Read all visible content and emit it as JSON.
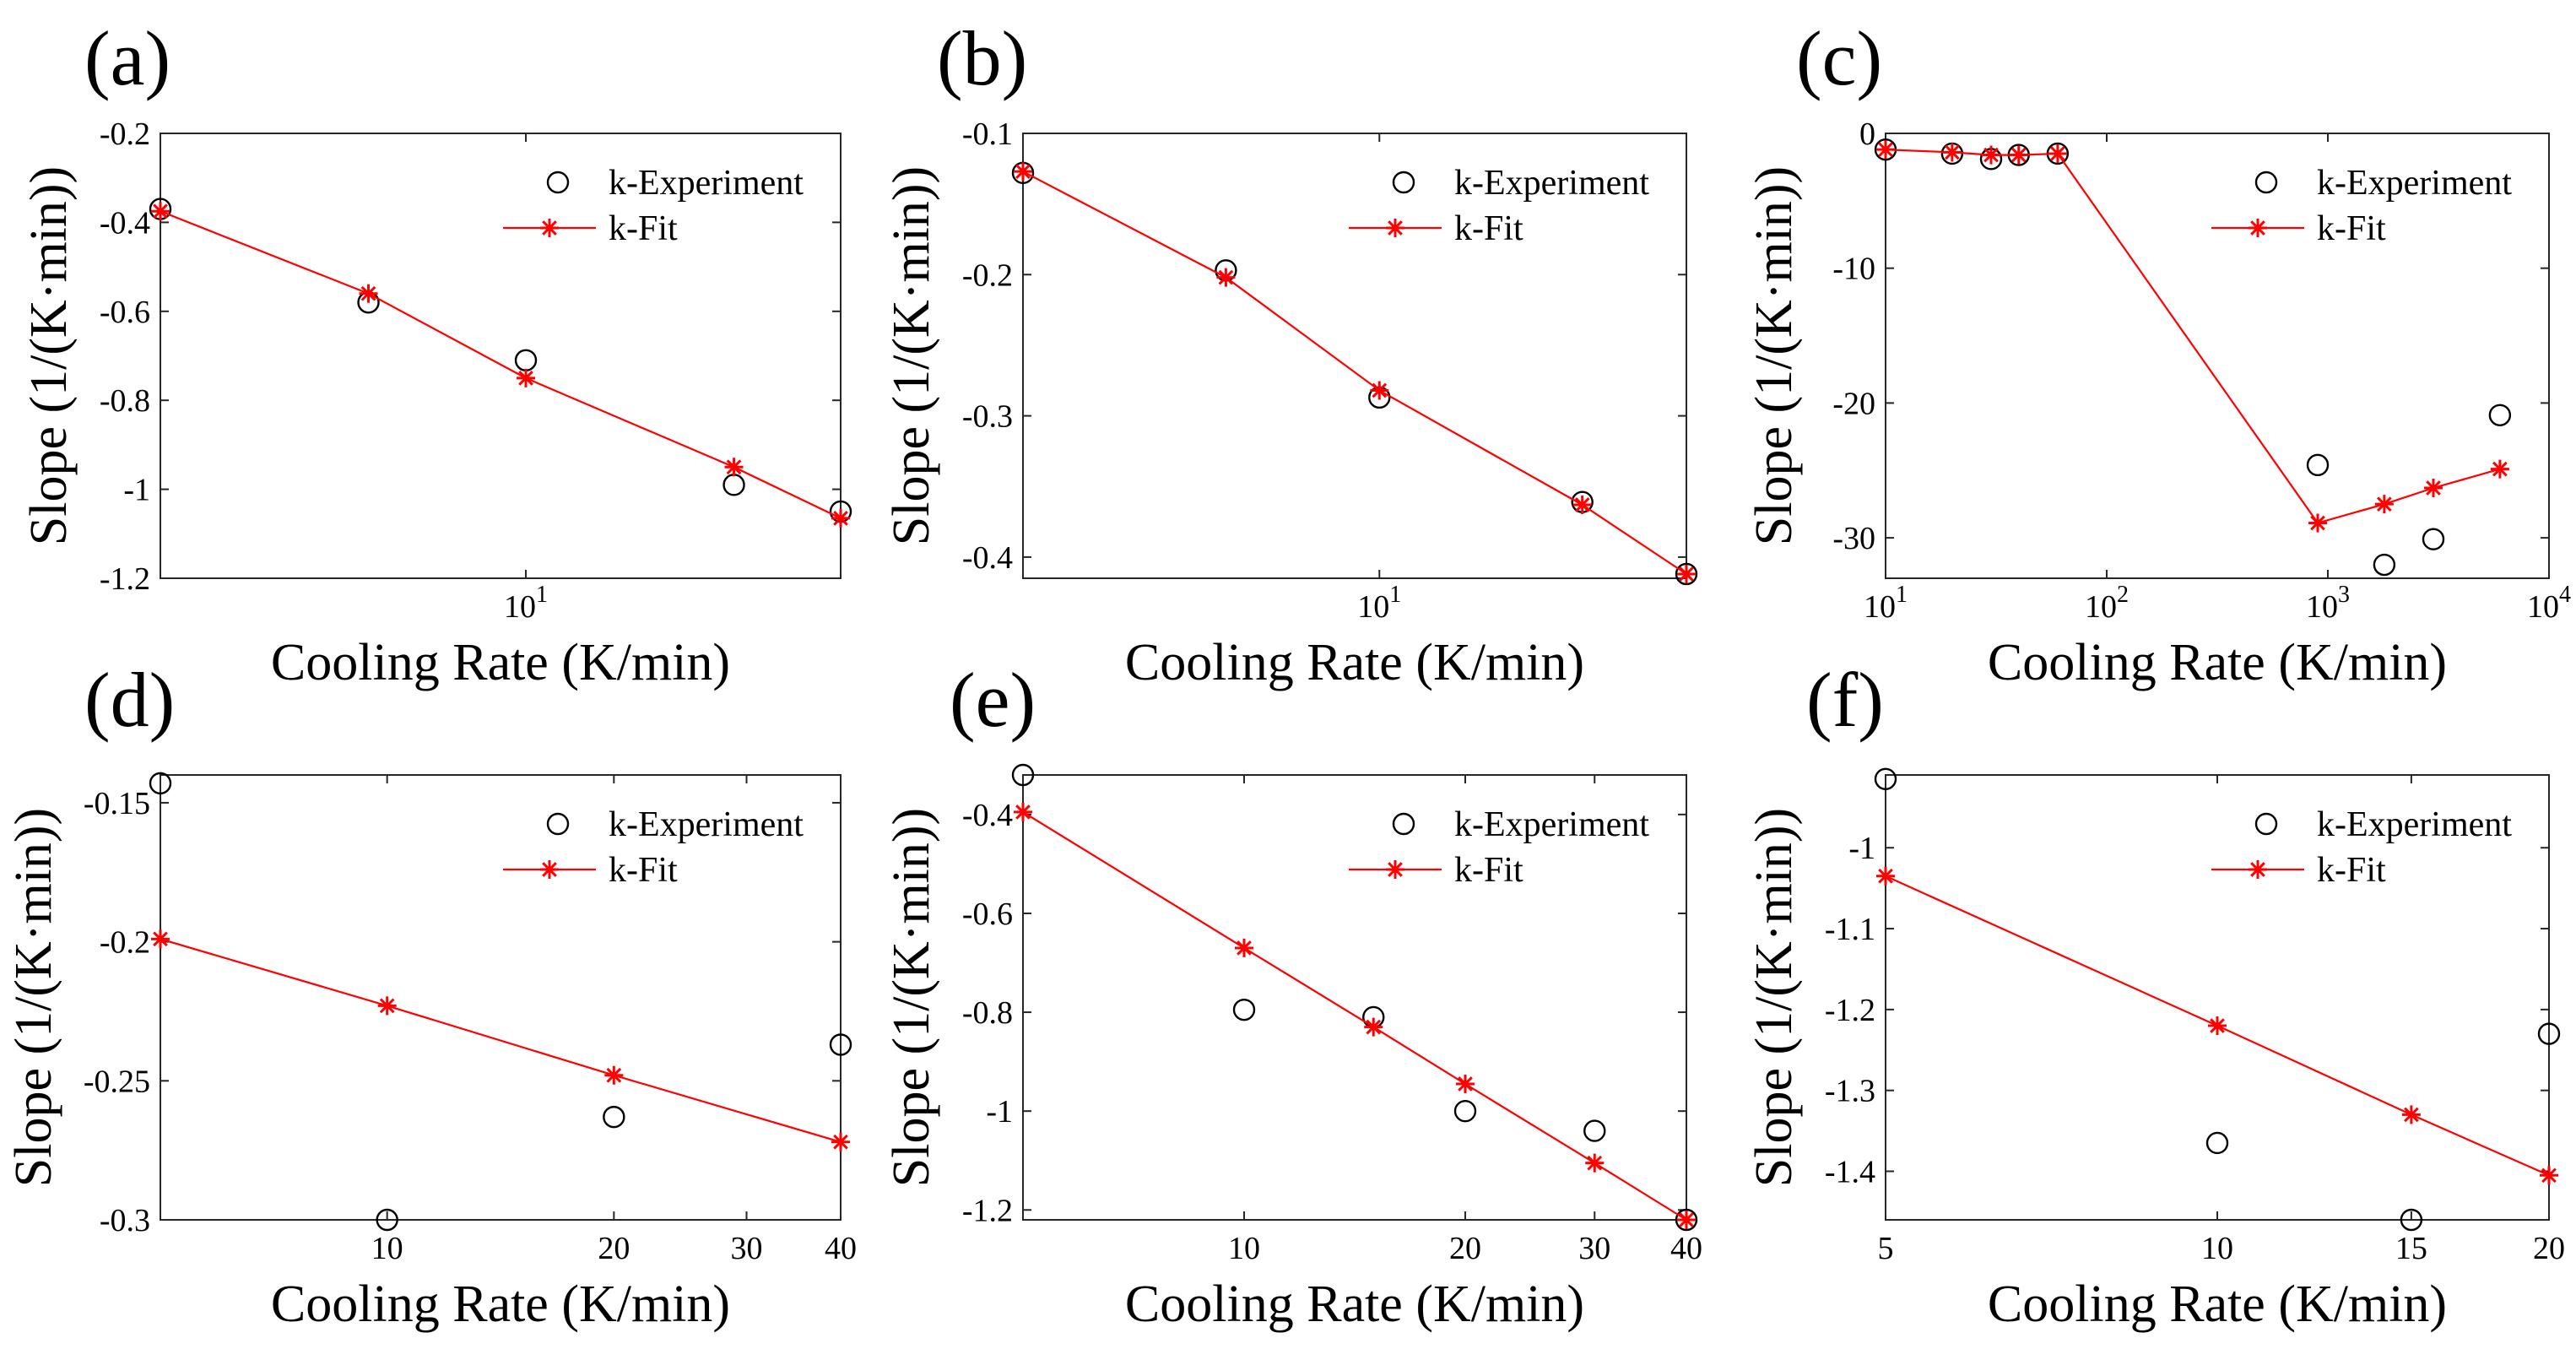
{
  "chart_data": [
    {
      "panel": "(a)",
      "type": "line",
      "xscale": "log",
      "xlabel": "Cooling Rate (K/min)",
      "ylabel": "Slope (1/(K·min))",
      "xlim": [
        2,
        40
      ],
      "ylim": [
        -1.2,
        -0.2
      ],
      "xticks": [
        {
          "v": 10,
          "base": "10",
          "exp": "1"
        }
      ],
      "yticks": [
        {
          "v": -0.2,
          "label": "-0.2"
        },
        {
          "v": -0.4,
          "label": "-0.4"
        },
        {
          "v": -0.6,
          "label": "-0.6"
        },
        {
          "v": -0.8,
          "label": "-0.8"
        },
        {
          "v": -1.0,
          "label": "-1"
        },
        {
          "v": -1.2,
          "label": "-1.2"
        }
      ],
      "legend_position": "top-right",
      "series": [
        {
          "name": "k-Experiment",
          "marker": "circle",
          "line": false,
          "color": "#000000",
          "points": [
            [
              2,
              -0.37
            ],
            [
              5,
              -0.58
            ],
            [
              10,
              -0.71
            ],
            [
              25,
              -0.99
            ],
            [
              40,
              -1.05
            ]
          ]
        },
        {
          "name": "k-Fit",
          "marker": "asterisk",
          "line": true,
          "color": "#ff0000",
          "points": [
            [
              2,
              -0.375
            ],
            [
              5,
              -0.56
            ],
            [
              10,
              -0.75
            ],
            [
              25,
              -0.95
            ],
            [
              40,
              -1.065
            ]
          ]
        }
      ]
    },
    {
      "panel": "(b)",
      "type": "line",
      "xscale": "log",
      "xlabel": "Cooling Rate (K/min)",
      "ylabel": "Slope (1/(K·min))",
      "xlim": [
        2,
        40
      ],
      "ylim": [
        -0.415,
        -0.1
      ],
      "xticks": [
        {
          "v": 10,
          "base": "10",
          "exp": "1"
        }
      ],
      "yticks": [
        {
          "v": -0.1,
          "label": "-0.1"
        },
        {
          "v": -0.2,
          "label": "-0.2"
        },
        {
          "v": -0.3,
          "label": "-0.3"
        },
        {
          "v": -0.4,
          "label": "-0.4"
        }
      ],
      "legend_position": "top-right",
      "series": [
        {
          "name": "k-Experiment",
          "marker": "circle",
          "line": false,
          "color": "#000000",
          "points": [
            [
              2,
              -0.128
            ],
            [
              5,
              -0.197
            ],
            [
              10,
              -0.287
            ],
            [
              25,
              -0.361
            ],
            [
              40,
              -0.412
            ]
          ]
        },
        {
          "name": "k-Fit",
          "marker": "asterisk",
          "line": true,
          "color": "#ff0000",
          "points": [
            [
              2,
              -0.127
            ],
            [
              5,
              -0.202
            ],
            [
              10,
              -0.282
            ],
            [
              25,
              -0.363
            ],
            [
              40,
              -0.412
            ]
          ]
        }
      ]
    },
    {
      "panel": "(c)",
      "type": "line",
      "xscale": "log",
      "xlabel": "Cooling Rate (K/min)",
      "ylabel": "Slope (1/(K·min))",
      "xlim": [
        10,
        10000
      ],
      "ylim": [
        -33,
        0
      ],
      "xticks": [
        {
          "v": 10,
          "base": "10",
          "exp": "1"
        },
        {
          "v": 100,
          "base": "10",
          "exp": "2"
        },
        {
          "v": 1000,
          "base": "10",
          "exp": "3"
        },
        {
          "v": 10000,
          "base": "10",
          "exp": "4"
        }
      ],
      "yticks": [
        {
          "v": 0,
          "label": "0"
        },
        {
          "v": -10,
          "label": "-10"
        },
        {
          "v": -20,
          "label": "-20"
        },
        {
          "v": -30,
          "label": "-30"
        }
      ],
      "legend_position": "top-right",
      "series": [
        {
          "name": "k-Experiment",
          "marker": "circle",
          "line": false,
          "color": "#000000",
          "points": [
            [
              10,
              -1.2
            ],
            [
              20,
              -1.5
            ],
            [
              30,
              -1.9
            ],
            [
              40,
              -1.6
            ],
            [
              60,
              -1.5
            ],
            [
              900,
              -24.6
            ],
            [
              1800,
              -32
            ],
            [
              3000,
              -30.1
            ],
            [
              6000,
              -20.9
            ]
          ]
        },
        {
          "name": "k-Fit",
          "marker": "asterisk",
          "line": true,
          "color": "#ff0000",
          "points": [
            [
              10,
              -1.2
            ],
            [
              20,
              -1.4
            ],
            [
              30,
              -1.6
            ],
            [
              40,
              -1.6
            ],
            [
              60,
              -1.5
            ],
            [
              900,
              -28.9
            ],
            [
              1800,
              -27.5
            ],
            [
              3000,
              -26.3
            ],
            [
              6000,
              -24.9
            ]
          ]
        }
      ]
    },
    {
      "panel": "(d)",
      "type": "line",
      "xscale": "log",
      "xlabel": "Cooling Rate (K/min)",
      "ylabel": "Slope (1/(K·min))",
      "xlim": [
        5,
        40
      ],
      "ylim": [
        -0.3,
        -0.14
      ],
      "xticks": [
        {
          "v": 10,
          "label": "10"
        },
        {
          "v": 20,
          "label": "20"
        },
        {
          "v": 30,
          "label": "30"
        },
        {
          "v": 40,
          "label": "40"
        }
      ],
      "yticks": [
        {
          "v": -0.15,
          "label": "-0.15"
        },
        {
          "v": -0.2,
          "label": "-0.2"
        },
        {
          "v": -0.25,
          "label": "-0.25"
        },
        {
          "v": -0.3,
          "label": "-0.3"
        }
      ],
      "legend_position": "top-right",
      "series": [
        {
          "name": "k-Experiment",
          "marker": "circle",
          "line": false,
          "color": "#000000",
          "points": [
            [
              5,
              -0.143
            ],
            [
              10,
              -0.3
            ],
            [
              20,
              -0.263
            ],
            [
              40,
              -0.237
            ]
          ]
        },
        {
          "name": "k-Fit",
          "marker": "asterisk",
          "line": true,
          "color": "#ff0000",
          "points": [
            [
              5,
              -0.199
            ],
            [
              10,
              -0.223
            ],
            [
              20,
              -0.248
            ],
            [
              40,
              -0.272
            ]
          ]
        }
      ]
    },
    {
      "panel": "(e)",
      "type": "line",
      "xscale": "log",
      "xlabel": "Cooling Rate (K/min)",
      "ylabel": "Slope (1/(K·min))",
      "xlim": [
        5,
        40
      ],
      "ylim": [
        -1.22,
        -0.32
      ],
      "xticks": [
        {
          "v": 10,
          "label": "10"
        },
        {
          "v": 20,
          "label": "20"
        },
        {
          "v": 30,
          "label": "30"
        },
        {
          "v": 40,
          "label": "40"
        }
      ],
      "yticks": [
        {
          "v": -0.4,
          "label": "-0.4"
        },
        {
          "v": -0.6,
          "label": "-0.6"
        },
        {
          "v": -0.8,
          "label": "-0.8"
        },
        {
          "v": -1.0,
          "label": "-1"
        },
        {
          "v": -1.2,
          "label": "-1.2"
        }
      ],
      "legend_position": "top-right",
      "series": [
        {
          "name": "k-Experiment",
          "marker": "circle",
          "line": false,
          "color": "#000000",
          "points": [
            [
              5,
              -0.32
            ],
            [
              10,
              -0.795
            ],
            [
              15,
              -0.81
            ],
            [
              20,
              -1.0
            ],
            [
              30,
              -1.04
            ],
            [
              40,
              -1.22
            ]
          ]
        },
        {
          "name": "k-Fit",
          "marker": "asterisk",
          "line": true,
          "color": "#ff0000",
          "points": [
            [
              5,
              -0.395
            ],
            [
              10,
              -0.67
            ],
            [
              15,
              -0.83
            ],
            [
              20,
              -0.945
            ],
            [
              30,
              -1.105
            ],
            [
              40,
              -1.22
            ]
          ]
        }
      ]
    },
    {
      "panel": "(f)",
      "type": "line",
      "xscale": "log",
      "xlabel": "Cooling Rate (K/min)",
      "ylabel": "Slope (1/(K·min))",
      "xlim": [
        5,
        20
      ],
      "ylim": [
        -1.46,
        -0.91
      ],
      "xticks": [
        {
          "v": 5,
          "label": "5"
        },
        {
          "v": 10,
          "label": "10"
        },
        {
          "v": 15,
          "label": "15"
        },
        {
          "v": 20,
          "label": "20"
        }
      ],
      "yticks": [
        {
          "v": -1.0,
          "label": "-1"
        },
        {
          "v": -1.1,
          "label": "-1.1"
        },
        {
          "v": -1.2,
          "label": "-1.2"
        },
        {
          "v": -1.3,
          "label": "-1.3"
        },
        {
          "v": -1.4,
          "label": "-1.4"
        }
      ],
      "legend_position": "top-right",
      "series": [
        {
          "name": "k-Experiment",
          "marker": "circle",
          "line": false,
          "color": "#000000",
          "points": [
            [
              5,
              -0.915
            ],
            [
              10,
              -1.365
            ],
            [
              15,
              -1.46
            ],
            [
              20,
              -1.23
            ]
          ]
        },
        {
          "name": "k-Fit",
          "marker": "asterisk",
          "line": true,
          "color": "#ff0000",
          "points": [
            [
              5,
              -1.035
            ],
            [
              10,
              -1.22
            ],
            [
              15,
              -1.33
            ],
            [
              20,
              -1.405
            ]
          ]
        }
      ]
    }
  ]
}
